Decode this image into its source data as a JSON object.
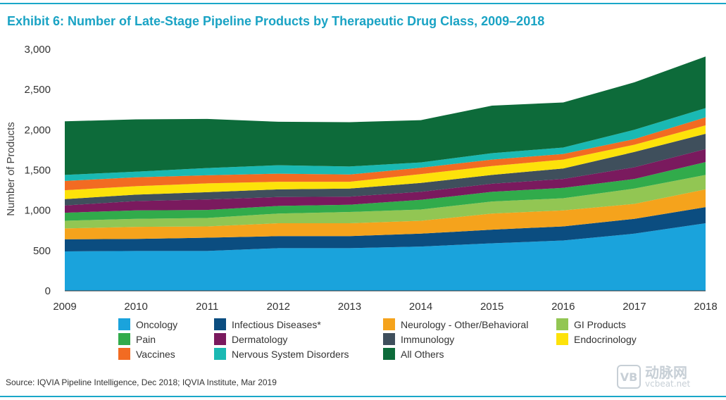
{
  "title": "Exhibit 6: Number of Late-Stage Pipeline Products by Therapeutic Drug Class, 2009–2018",
  "source": "Source: IQVIA Pipeline Intelligence, Dec 2018; IQVIA Institute, Mar 2019",
  "watermark": {
    "logo": "VB",
    "cn": "动脉网",
    "en": "vcbeat.net"
  },
  "chart_data": {
    "type": "area",
    "stacked": true,
    "title": "Exhibit 6: Number of Late-Stage Pipeline Products by Therapeutic Drug Class, 2009–2018",
    "xlabel": "",
    "ylabel": "Number of Products",
    "ylim": [
      0,
      3000
    ],
    "yticks": [
      0,
      500,
      1000,
      1500,
      2000,
      2500,
      3000
    ],
    "ytick_labels": [
      "0",
      "500",
      "1,000",
      "1,500",
      "2,000",
      "2,500",
      "3,000"
    ],
    "categories": [
      "2009",
      "2010",
      "2011",
      "2012",
      "2013",
      "2014",
      "2015",
      "2016",
      "2017",
      "2018"
    ],
    "legend_position": "bottom",
    "series": [
      {
        "name": "Oncology",
        "color": "#1aa3dc",
        "values": [
          490,
          495,
          495,
          530,
          530,
          550,
          590,
          625,
          710,
          840
        ]
      },
      {
        "name": "Infectious Diseases*",
        "color": "#0b4d80",
        "values": [
          150,
          150,
          165,
          150,
          150,
          160,
          170,
          175,
          185,
          200
        ]
      },
      {
        "name": "Neurology - Other/Behavioral",
        "color": "#f5a31c",
        "values": [
          135,
          150,
          140,
          160,
          160,
          160,
          200,
          200,
          185,
          220
        ]
      },
      {
        "name": "GI Products",
        "color": "#92c653",
        "values": [
          95,
          100,
          105,
          120,
          140,
          140,
          150,
          150,
          190,
          180
        ]
      },
      {
        "name": "Pain",
        "color": "#31ab4b",
        "values": [
          100,
          105,
          100,
          95,
          90,
          120,
          120,
          130,
          120,
          160
        ]
      },
      {
        "name": "Dermatology",
        "color": "#7a1a5e",
        "values": [
          90,
          115,
          130,
          110,
          100,
          100,
          100,
          110,
          145,
          160
        ]
      },
      {
        "name": "Immunology",
        "color": "#3f4f5c",
        "values": [
          80,
          80,
          90,
          95,
          100,
          110,
          110,
          130,
          190,
          190
        ]
      },
      {
        "name": "Endocrinology",
        "color": "#fde20a",
        "values": [
          110,
          105,
          110,
          95,
          85,
          110,
          110,
          110,
          90,
          105
        ]
      },
      {
        "name": "Vaccines",
        "color": "#f26b22",
        "values": [
          115,
          110,
          100,
          100,
          90,
          80,
          80,
          70,
          70,
          100
        ]
      },
      {
        "name": "Nervous System Disorders",
        "color": "#1ab9b3",
        "values": [
          75,
          70,
          90,
          105,
          100,
          65,
          80,
          80,
          115,
          115
        ]
      },
      {
        "name": "All Others",
        "color": "#0d6b3a",
        "values": [
          665,
          650,
          610,
          540,
          550,
          525,
          590,
          560,
          590,
          640
        ]
      }
    ]
  }
}
